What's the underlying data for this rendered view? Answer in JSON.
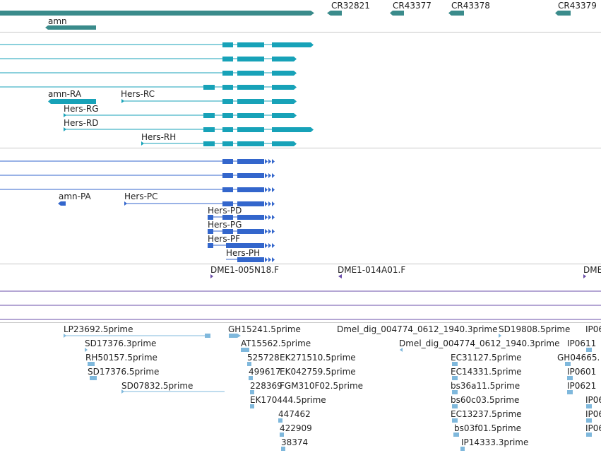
{
  "colors": {
    "gene": "#3a8b8b",
    "transcript_teal": "#17a2b8",
    "transcript_blue": "#3366cc",
    "marker_purple": "#6a4ca8",
    "est_light": "#7fb8dc",
    "separator": "#c8c8c8"
  },
  "genes": {
    "cr32821": "CR32821",
    "cr43377": "CR43377",
    "cr43378": "CR43378",
    "cr43379": "CR43379",
    "amn": "amn"
  },
  "transcripts_teal": {
    "amn_ra": "amn-RA",
    "hers_rc": "Hers-RC",
    "hers_rg": "Hers-RG",
    "hers_rd": "Hers-RD",
    "hers_rh": "Hers-RH"
  },
  "transcripts_blue": {
    "amn_pa": "amn-PA",
    "hers_pc": "Hers-PC",
    "hers_pd": "Hers-PD",
    "hers_pg": "Hers-PG",
    "hers_pf": "Hers-PF",
    "hers_ph": "Hers-PH"
  },
  "markers": {
    "m1": "DME1-005N18.F",
    "m2": "DME1-014A01.F",
    "m3": "DME"
  },
  "ests": {
    "lp23692": "LP23692.5prime",
    "sd17376a": "SD17376.3prime",
    "rh50157": "RH50157.5prime",
    "sd17376b": "SD17376.5prime",
    "sd07832": "SD07832.5prime",
    "gh15241": "GH15241.5prime",
    "at15562": "AT15562.5prime",
    "n525728": "525728",
    "ek271510": "EK271510.5prime",
    "n499617": "499617",
    "ek042759": "EK042759.5prime",
    "n228369": "228369",
    "fgm310f02": "FGM310F02.5prime",
    "ek170444": "EK170444.5prime",
    "n447462": "447462",
    "n422909": "422909",
    "n38374": "38374",
    "dmel_a": "Dmel_dig_004774_0612_1940.3prime",
    "dmel_b": "Dmel_dig_004774_0612_1940.3prime",
    "sd19808": "SD19808.5prime",
    "ec31127": "EC31127.5prime",
    "ec14331": "EC14331.5prime",
    "bs36a11": "bs36a11.5prime",
    "bs60c03": "bs60c03.5prime",
    "ec13237": "EC13237.5prime",
    "bs03f01": "bs03f01.5prime",
    "ip14333": "IP14333.3prime",
    "ip06_a": "IP06",
    "ip0611": "IP0611",
    "gh04665": "GH04665.",
    "ip0601": "IP0601",
    "ip0621": "IP0621",
    "ip06_b": "IP06",
    "ip06_c": "IP06",
    "ip06_d": "IP06"
  }
}
